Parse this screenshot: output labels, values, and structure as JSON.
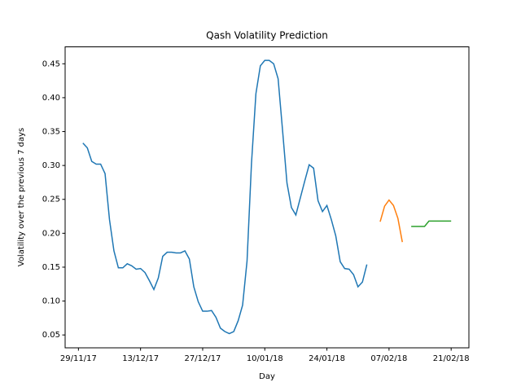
{
  "chart_data": {
    "type": "line",
    "title": "Qash Volatility Prediction",
    "xlabel": "Day",
    "ylabel": "Volatility over the previous 7 days",
    "series": [
      {
        "color": "#1f77b4",
        "x": [
          "2017-11-30",
          "2017-12-01",
          "2017-12-02",
          "2017-12-03",
          "2017-12-04",
          "2017-12-05",
          "2017-12-06",
          "2017-12-07",
          "2017-12-08",
          "2017-12-09",
          "2017-12-10",
          "2017-12-11",
          "2017-12-12",
          "2017-12-13",
          "2017-12-14",
          "2017-12-15",
          "2017-12-16",
          "2017-12-17",
          "2017-12-18",
          "2017-12-19",
          "2017-12-20",
          "2017-12-21",
          "2017-12-22",
          "2017-12-23",
          "2017-12-24",
          "2017-12-25",
          "2017-12-26",
          "2017-12-27",
          "2017-12-28",
          "2017-12-29",
          "2017-12-30",
          "2017-12-31",
          "2018-01-01",
          "2018-01-02",
          "2018-01-03",
          "2018-01-04",
          "2018-01-05",
          "2018-01-06",
          "2018-01-07",
          "2018-01-08",
          "2018-01-09",
          "2018-01-10",
          "2018-01-11",
          "2018-01-12",
          "2018-01-13",
          "2018-01-14",
          "2018-01-15",
          "2018-01-16",
          "2018-01-17",
          "2018-01-18",
          "2018-01-19",
          "2018-01-20",
          "2018-01-21",
          "2018-01-22",
          "2018-01-23",
          "2018-01-24",
          "2018-01-25",
          "2018-01-26",
          "2018-01-27",
          "2018-01-28",
          "2018-01-29",
          "2018-01-30",
          "2018-01-31",
          "2018-02-01",
          "2018-02-02"
        ],
        "values": [
          0.333,
          0.326,
          0.306,
          0.302,
          0.302,
          0.288,
          0.22,
          0.174,
          0.149,
          0.149,
          0.155,
          0.152,
          0.147,
          0.148,
          0.142,
          0.13,
          0.117,
          0.134,
          0.166,
          0.172,
          0.172,
          0.171,
          0.171,
          0.174,
          0.162,
          0.121,
          0.099,
          0.085,
          0.085,
          0.086,
          0.076,
          0.06,
          0.055,
          0.052,
          0.055,
          0.071,
          0.094,
          0.159,
          0.303,
          0.406,
          0.447,
          0.455,
          0.455,
          0.45,
          0.428,
          0.352,
          0.274,
          0.238,
          0.227,
          0.252,
          0.277,
          0.301,
          0.296,
          0.248,
          0.232,
          0.241,
          0.22,
          0.196,
          0.158,
          0.148,
          0.147,
          0.139,
          0.121,
          0.128,
          0.154
        ]
      },
      {
        "color": "#ff7f0e",
        "x": [
          "2018-02-05",
          "2018-02-06",
          "2018-02-07",
          "2018-02-08",
          "2018-02-09",
          "2018-02-10"
        ],
        "values": [
          0.217,
          0.24,
          0.249,
          0.241,
          0.222,
          0.187
        ]
      },
      {
        "color": "#2ca02c",
        "x": [
          "2018-02-12",
          "2018-02-13",
          "2018-02-14",
          "2018-02-15",
          "2018-02-16",
          "2018-02-17",
          "2018-02-18",
          "2018-02-19",
          "2018-02-20",
          "2018-02-21"
        ],
        "values": [
          0.21,
          0.21,
          0.21,
          0.21,
          0.218,
          0.218,
          0.218,
          0.218,
          0.218,
          0.218
        ]
      }
    ],
    "xlim": [
      "2017-11-26",
      "2018-02-25"
    ],
    "xticks": [
      {
        "value": "2017-11-29",
        "label": "29/11/17"
      },
      {
        "value": "2017-12-13",
        "label": "13/12/17"
      },
      {
        "value": "2017-12-27",
        "label": "27/12/17"
      },
      {
        "value": "2018-01-10",
        "label": "10/01/18"
      },
      {
        "value": "2018-01-24",
        "label": "24/01/18"
      },
      {
        "value": "2018-02-07",
        "label": "07/02/18"
      },
      {
        "value": "2018-02-21",
        "label": "21/02/18"
      }
    ],
    "ylim": [
      0.031,
      0.475
    ],
    "yticks": [
      0.05,
      {
        "value": 0.1,
        "label": "0.10"
      },
      0.15,
      {
        "value": 0.2,
        "label": "0.20"
      },
      0.25,
      {
        "value": 0.3,
        "label": "0.30"
      },
      0.35,
      {
        "value": 0.4,
        "label": "0.40"
      },
      0.45
    ],
    "grid": false
  }
}
